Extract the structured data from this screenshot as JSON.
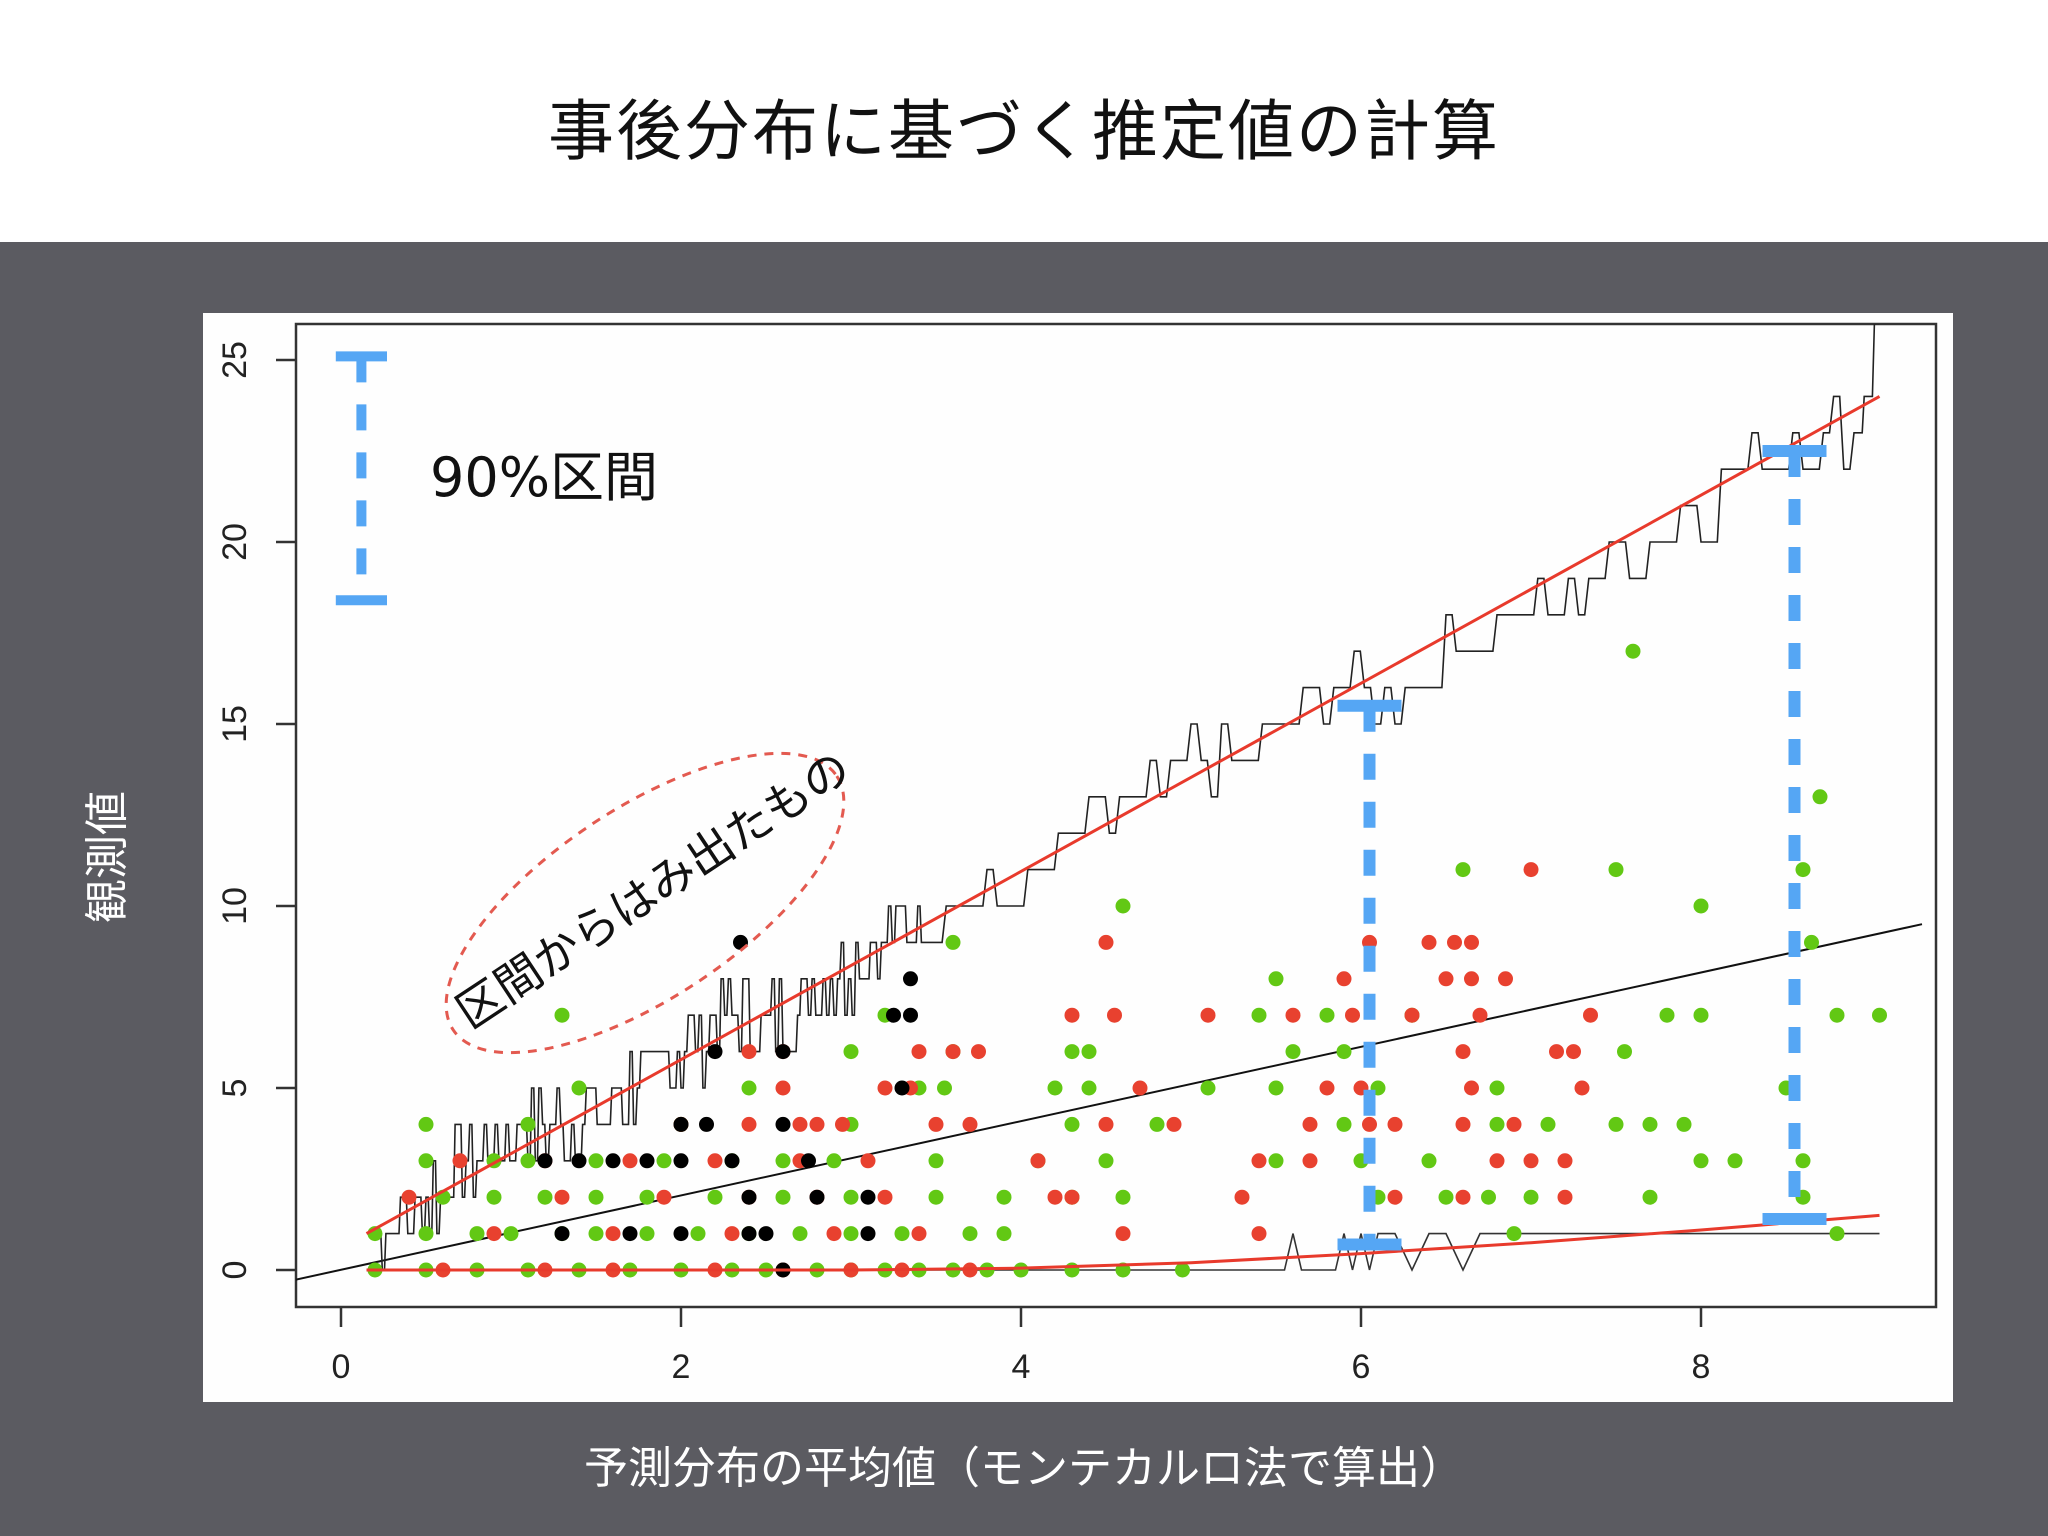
{
  "slide": {
    "title": "事後分布に基づく推定値の計算",
    "xlabel": "予測分布の平均値（モンテカルロ法で算出）",
    "ylabel": "観測値"
  },
  "annotations": {
    "interval_legend": "90%区間",
    "outlier_note": "区間からはみ出たもの"
  },
  "colors": {
    "background": "#5b5b61",
    "panel": "#fefefe",
    "green_points": "#62c814",
    "red_points": "#e8412f",
    "black_points": "#000000",
    "interval_blue": "#55a6f4",
    "red_lines": "#e83a2c"
  },
  "chart_data": {
    "type": "scatter",
    "title": "事後分布に基づく推定値の計算",
    "xlabel": "予測分布の平均値（モンテカルロ法で算出）",
    "ylabel": "観測値",
    "xlim": [
      -0.3,
      9.3
    ],
    "ylim": [
      -0.9,
      26.2
    ],
    "xticks": [
      0,
      2,
      4,
      6,
      8
    ],
    "yticks": [
      0,
      5,
      10,
      15,
      20,
      25
    ],
    "grid": false,
    "legend": "none",
    "reference_line": {
      "name": "y = x",
      "color": "#000000",
      "from": [
        -0.3,
        -0.3
      ],
      "to": [
        9.3,
        9.5
      ]
    },
    "interval_upper": {
      "name": "90% interval upper (red)",
      "x": [
        0.15,
        9.05
      ],
      "y": [
        1,
        24
      ]
    },
    "interval_lower": {
      "name": "90% interval lower (red)",
      "x": [
        0.15,
        1.0,
        2.0,
        3.0,
        4.0,
        5.0,
        6.0,
        7.0,
        8.0,
        9.05
      ],
      "y": [
        0,
        0,
        0,
        0,
        0.05,
        0.2,
        0.45,
        0.75,
        1.1,
        1.5
      ]
    },
    "black_step_upper_x": [
      0.2,
      0.5,
      0.8,
      1.1,
      1.4,
      1.7,
      2.0,
      2.3,
      2.6,
      2.9,
      3.2,
      3.5,
      3.8,
      4.1,
      4.4,
      4.7,
      5.0,
      5.3,
      5.6,
      5.9,
      6.2,
      6.5,
      6.8,
      7.1,
      7.4,
      7.7,
      8.0,
      8.3,
      8.6,
      8.9,
      9.05
    ],
    "black_step_upper_y": [
      1,
      2,
      3,
      4,
      4,
      5,
      6,
      7,
      7,
      8,
      9,
      10,
      10,
      11,
      12,
      13,
      14,
      14,
      15,
      16,
      16,
      17,
      18,
      18,
      19,
      20,
      21,
      22,
      23,
      23,
      26
    ],
    "intervals_highlighted": [
      {
        "x": 6.05,
        "lower": 0.7,
        "upper": 15.5
      },
      {
        "x": 8.55,
        "lower": 1.4,
        "upper": 22.5
      },
      {
        "x": 0.12,
        "lower": 18.4,
        "upper": 25.1,
        "role": "legend"
      }
    ],
    "series": [
      {
        "name": "green (within interval)",
        "color": "#62c814",
        "points": [
          [
            0.2,
            0
          ],
          [
            0.5,
            0
          ],
          [
            0.8,
            0
          ],
          [
            1.1,
            0
          ],
          [
            1.4,
            0
          ],
          [
            1.7,
            0
          ],
          [
            2.0,
            0
          ],
          [
            2.3,
            0
          ],
          [
            2.5,
            0
          ],
          [
            2.8,
            0
          ],
          [
            3.0,
            0
          ],
          [
            3.2,
            0
          ],
          [
            3.4,
            0
          ],
          [
            3.6,
            0
          ],
          [
            3.8,
            0
          ],
          [
            4.0,
            0
          ],
          [
            4.3,
            0
          ],
          [
            4.6,
            0
          ],
          [
            4.95,
            0
          ],
          [
            0.2,
            1
          ],
          [
            0.5,
            1
          ],
          [
            0.8,
            1
          ],
          [
            1.0,
            1
          ],
          [
            1.3,
            1
          ],
          [
            1.5,
            1
          ],
          [
            1.8,
            1
          ],
          [
            2.1,
            1
          ],
          [
            2.4,
            1
          ],
          [
            2.7,
            1
          ],
          [
            3.0,
            1
          ],
          [
            3.3,
            1
          ],
          [
            3.7,
            1
          ],
          [
            3.9,
            1
          ],
          [
            6.9,
            1
          ],
          [
            8.8,
            1
          ],
          [
            0.6,
            2
          ],
          [
            0.9,
            2
          ],
          [
            1.2,
            2
          ],
          [
            1.5,
            2
          ],
          [
            1.8,
            2
          ],
          [
            2.2,
            2
          ],
          [
            2.6,
            2
          ],
          [
            3.0,
            2
          ],
          [
            3.5,
            2
          ],
          [
            3.9,
            2
          ],
          [
            4.3,
            2
          ],
          [
            4.6,
            2
          ],
          [
            6.1,
            2
          ],
          [
            6.5,
            2
          ],
          [
            6.75,
            2
          ],
          [
            7.0,
            2
          ],
          [
            7.7,
            2
          ],
          [
            8.6,
            2
          ],
          [
            0.5,
            3
          ],
          [
            0.9,
            3
          ],
          [
            1.1,
            3
          ],
          [
            1.5,
            3
          ],
          [
            1.9,
            3
          ],
          [
            2.3,
            3
          ],
          [
            2.6,
            3
          ],
          [
            2.9,
            3
          ],
          [
            3.5,
            3
          ],
          [
            4.1,
            3
          ],
          [
            4.5,
            3
          ],
          [
            5.5,
            3
          ],
          [
            6.0,
            3
          ],
          [
            6.4,
            3
          ],
          [
            8.0,
            3
          ],
          [
            8.2,
            3
          ],
          [
            8.6,
            3
          ],
          [
            0.5,
            4
          ],
          [
            1.1,
            4
          ],
          [
            2.0,
            4
          ],
          [
            3.0,
            4
          ],
          [
            4.3,
            4
          ],
          [
            4.8,
            4
          ],
          [
            5.9,
            4
          ],
          [
            6.8,
            4
          ],
          [
            7.1,
            4
          ],
          [
            7.5,
            4
          ],
          [
            7.7,
            4
          ],
          [
            7.9,
            4
          ],
          [
            1.4,
            5
          ],
          [
            2.4,
            5
          ],
          [
            3.4,
            5
          ],
          [
            3.55,
            5
          ],
          [
            4.2,
            5
          ],
          [
            4.4,
            5
          ],
          [
            5.1,
            5
          ],
          [
            5.5,
            5
          ],
          [
            6.1,
            5
          ],
          [
            6.8,
            5
          ],
          [
            8.5,
            5
          ],
          [
            3.0,
            6
          ],
          [
            3.6,
            6
          ],
          [
            4.3,
            6
          ],
          [
            4.4,
            6
          ],
          [
            5.6,
            6
          ],
          [
            5.9,
            6
          ],
          [
            7.55,
            6
          ],
          [
            1.3,
            7
          ],
          [
            3.2,
            7
          ],
          [
            5.4,
            7
          ],
          [
            5.8,
            7
          ],
          [
            6.3,
            7
          ],
          [
            7.8,
            7
          ],
          [
            8.0,
            7
          ],
          [
            8.8,
            7
          ],
          [
            9.05,
            7
          ],
          [
            5.5,
            8
          ],
          [
            8.65,
            9
          ],
          [
            3.6,
            9
          ],
          [
            4.6,
            10
          ],
          [
            8.0,
            10
          ],
          [
            6.6,
            11
          ],
          [
            7.5,
            11
          ],
          [
            8.6,
            11
          ],
          [
            8.7,
            13
          ],
          [
            7.6,
            17
          ]
        ]
      },
      {
        "name": "red (within interval)",
        "color": "#e8412f",
        "points": [
          [
            0.6,
            0
          ],
          [
            1.2,
            0
          ],
          [
            1.6,
            0
          ],
          [
            2.2,
            0
          ],
          [
            2.6,
            0
          ],
          [
            3.0,
            0
          ],
          [
            3.3,
            0
          ],
          [
            3.7,
            0
          ],
          [
            0.9,
            1
          ],
          [
            1.6,
            1
          ],
          [
            2.3,
            1
          ],
          [
            2.9,
            1
          ],
          [
            3.4,
            1
          ],
          [
            4.6,
            1
          ],
          [
            5.4,
            1
          ],
          [
            0.4,
            2
          ],
          [
            1.3,
            2
          ],
          [
            1.9,
            2
          ],
          [
            2.4,
            2
          ],
          [
            2.8,
            2
          ],
          [
            3.2,
            2
          ],
          [
            4.2,
            2
          ],
          [
            4.3,
            2
          ],
          [
            5.3,
            2
          ],
          [
            6.2,
            2
          ],
          [
            6.6,
            2
          ],
          [
            7.2,
            2
          ],
          [
            0.7,
            3
          ],
          [
            1.2,
            3
          ],
          [
            1.7,
            3
          ],
          [
            2.2,
            3
          ],
          [
            2.7,
            3
          ],
          [
            3.1,
            3
          ],
          [
            4.1,
            3
          ],
          [
            5.4,
            3
          ],
          [
            5.7,
            3
          ],
          [
            6.8,
            3
          ],
          [
            7.0,
            3
          ],
          [
            7.2,
            3
          ],
          [
            2.0,
            4
          ],
          [
            2.4,
            4
          ],
          [
            2.7,
            4
          ],
          [
            2.8,
            4
          ],
          [
            2.95,
            4
          ],
          [
            3.5,
            4
          ],
          [
            3.7,
            4
          ],
          [
            4.5,
            4
          ],
          [
            4.9,
            4
          ],
          [
            5.7,
            4
          ],
          [
            6.05,
            4
          ],
          [
            6.2,
            4
          ],
          [
            6.6,
            4
          ],
          [
            6.9,
            4
          ],
          [
            2.6,
            5
          ],
          [
            3.2,
            5
          ],
          [
            3.35,
            5
          ],
          [
            4.7,
            5
          ],
          [
            5.8,
            5
          ],
          [
            6.0,
            5
          ],
          [
            6.65,
            5
          ],
          [
            7.3,
            5
          ],
          [
            2.4,
            6
          ],
          [
            2.6,
            6
          ],
          [
            3.4,
            6
          ],
          [
            3.6,
            6
          ],
          [
            3.75,
            6
          ],
          [
            6.6,
            6
          ],
          [
            7.15,
            6
          ],
          [
            7.25,
            6
          ],
          [
            4.3,
            7
          ],
          [
            4.55,
            7
          ],
          [
            5.1,
            7
          ],
          [
            5.6,
            7
          ],
          [
            5.95,
            7
          ],
          [
            6.3,
            7
          ],
          [
            6.7,
            7
          ],
          [
            7.35,
            7
          ],
          [
            5.9,
            8
          ],
          [
            6.5,
            8
          ],
          [
            6.65,
            8
          ],
          [
            6.85,
            8
          ],
          [
            6.05,
            9
          ],
          [
            6.4,
            9
          ],
          [
            6.55,
            9
          ],
          [
            6.65,
            9
          ],
          [
            4.5,
            9
          ],
          [
            7.0,
            11
          ]
        ]
      },
      {
        "name": "black (outside interval)",
        "color": "#000000",
        "points": [
          [
            2.35,
            9
          ],
          [
            3.35,
            8
          ],
          [
            3.25,
            7
          ],
          [
            3.35,
            7
          ],
          [
            2.6,
            6
          ],
          [
            2.2,
            6
          ],
          [
            3.3,
            5
          ],
          [
            2.0,
            4
          ],
          [
            2.15,
            4
          ],
          [
            2.6,
            4
          ],
          [
            1.2,
            3
          ],
          [
            1.4,
            3
          ],
          [
            1.6,
            3
          ],
          [
            1.8,
            3
          ],
          [
            2.0,
            3
          ],
          [
            2.3,
            3
          ],
          [
            2.75,
            3
          ],
          [
            2.4,
            2
          ],
          [
            2.8,
            2
          ],
          [
            3.1,
            2
          ],
          [
            1.3,
            1
          ],
          [
            1.7,
            1
          ],
          [
            2.0,
            1
          ],
          [
            2.4,
            1
          ],
          [
            2.5,
            1
          ],
          [
            3.1,
            1
          ],
          [
            2.6,
            0
          ]
        ]
      }
    ]
  }
}
